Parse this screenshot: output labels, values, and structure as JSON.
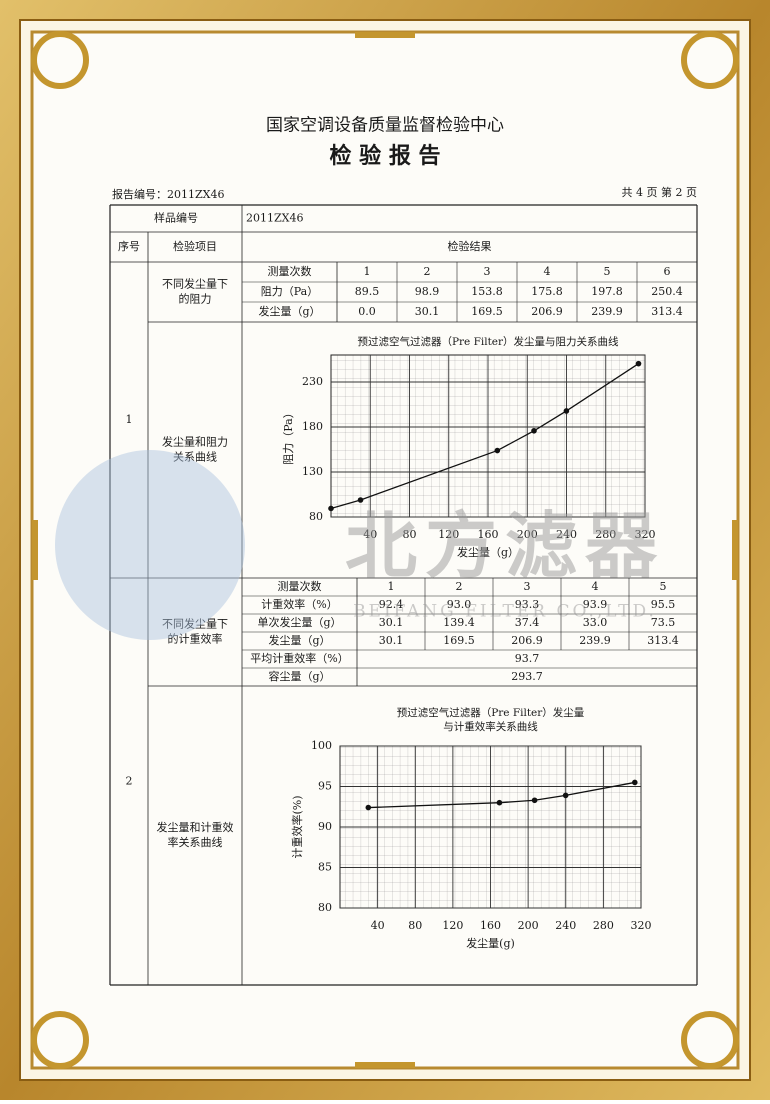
{
  "header": {
    "title": "国家空调设备质量监督检验中心",
    "subtitle": "检 验 报 告",
    "report_no": "报告编号：2011ZX46",
    "page": "共 4 页 第 2 页"
  },
  "table": {
    "sample_label": "样品编号",
    "sample_no": "2011ZX46",
    "headers": [
      "序号",
      "检验项目",
      "检验结果"
    ],
    "sections": [
      {
        "no": "1",
        "items": [
          [
            "不同发尘量下",
            "的阻力"
          ],
          [
            "发尘量和阻力",
            "关系曲线"
          ]
        ],
        "rows": [
          [
            "测量次数",
            "1",
            "2",
            "3",
            "4",
            "5",
            "6"
          ],
          [
            "阻力（Pa）",
            "89.5",
            "98.9",
            "153.8",
            "175.8",
            "197.8",
            "250.4"
          ],
          [
            "发尘量（g）",
            "0.0",
            "30.1",
            "169.5",
            "206.9",
            "239.9",
            "313.4"
          ]
        ]
      },
      {
        "no": "2",
        "items": [
          [
            "不同发尘量下",
            "的计重效率"
          ],
          [
            "发尘量和计重效",
            "率关系曲线"
          ]
        ],
        "rows": [
          [
            "测量次数",
            "1",
            "2",
            "3",
            "4",
            "5"
          ],
          [
            "计重效率（%）",
            "92.4",
            "93.0",
            "93.3",
            "93.9",
            "95.5"
          ],
          [
            "单次发尘量（g）",
            "30.1",
            "139.4",
            "37.4",
            "33.0",
            "73.5"
          ],
          [
            "发尘量（g）",
            "30.1",
            "169.5",
            "206.9",
            "239.9",
            "313.4"
          ],
          [
            "平均计重效率（%）",
            "93.7"
          ],
          [
            "容尘量（g）",
            "293.7"
          ]
        ]
      }
    ]
  },
  "charts": [
    {
      "type": "line",
      "title": [
        "预过滤空气过滤器（Pre Filter）发尘量与阻力关系曲线"
      ],
      "x_label": "发尘量（g）",
      "y_label": "阻力（Pa）",
      "x": [
        0,
        30.1,
        169.5,
        206.9,
        239.9,
        313.4
      ],
      "values": [
        89.5,
        98.9,
        153.8,
        175.8,
        197.8,
        250.4
      ],
      "xlim": [
        0,
        320
      ],
      "xticks": [
        40,
        80,
        120,
        160,
        200,
        240,
        280,
        320
      ],
      "ylim": [
        80,
        260
      ],
      "yticks": [
        80,
        130,
        180,
        230
      ],
      "grid": true
    },
    {
      "type": "line",
      "title": [
        "预过滤空气过滤器（Pre Filter）发尘量",
        "与计重效率关系曲线"
      ],
      "x_label": "发尘量(g)",
      "y_label": "计重效率(%)",
      "x": [
        30.1,
        169.5,
        206.9,
        239.9,
        313.4
      ],
      "values": [
        92.4,
        93.0,
        93.3,
        93.9,
        95.5
      ],
      "xlim": [
        0,
        320
      ],
      "xticks": [
        40,
        80,
        120,
        160,
        200,
        240,
        280,
        320
      ],
      "ylim": [
        80,
        100
      ],
      "yticks": [
        80,
        85,
        90,
        95,
        100
      ],
      "grid": true
    }
  ],
  "watermark": {
    "brand": "北方滤器",
    "company": "BEIFANG FILTER CO.,LTD."
  }
}
